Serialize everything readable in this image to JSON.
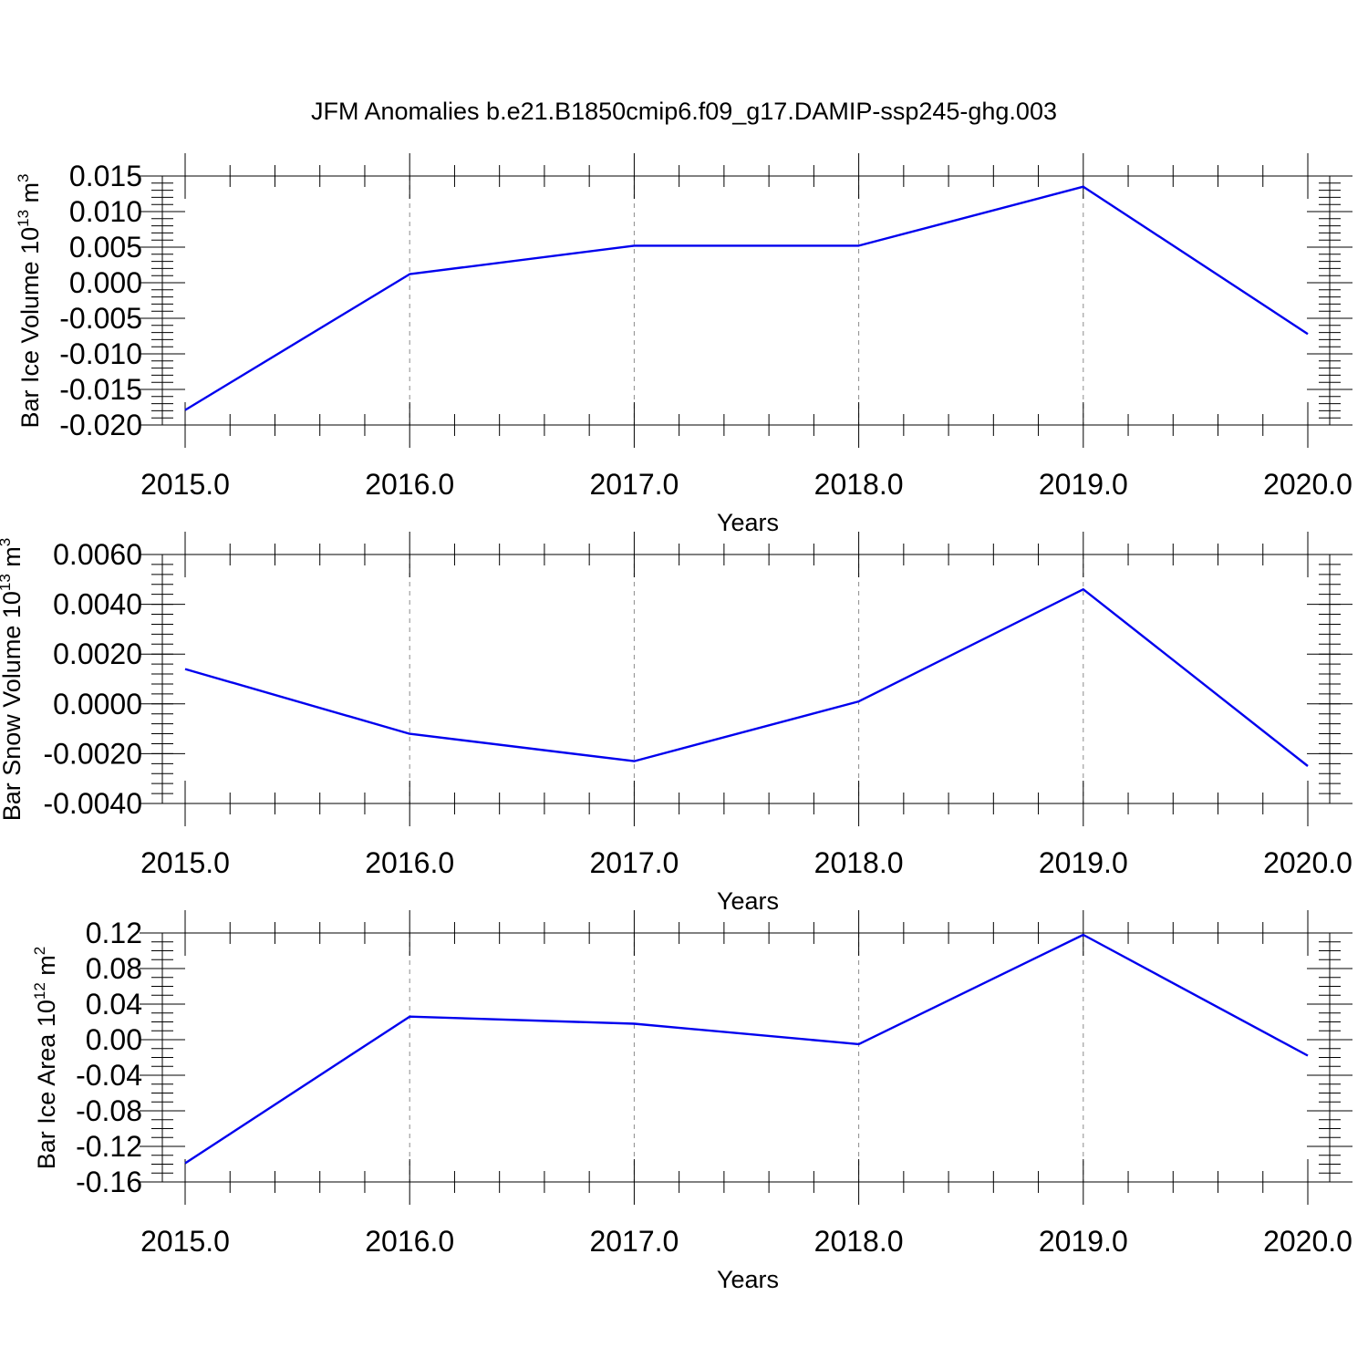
{
  "title": "JFM Anomalies b.e21.B1850cmip6.f09_g17.DAMIP-ssp245-ghg.003",
  "chart_data": [
    {
      "type": "line",
      "x": [
        2015,
        2016,
        2017,
        2018,
        2019,
        2020
      ],
      "values": [
        -0.0179,
        0.0012,
        0.0052,
        0.0052,
        0.0135,
        -0.0072
      ],
      "xlim": [
        2015,
        2020.1
      ],
      "ylim": [
        -0.02,
        0.015
      ],
      "x_ticks": [
        "2015.0",
        "2016.0",
        "2017.0",
        "2018.0",
        "2019.0",
        "2020.0"
      ],
      "y_ticks": [
        {
          "value": 0.015,
          "label": "0.015"
        },
        {
          "value": 0.01,
          "label": "0.010"
        },
        {
          "value": 0.005,
          "label": "0.005"
        },
        {
          "value": 0.0,
          "label": "0.000"
        },
        {
          "value": -0.005,
          "label": "-0.005"
        },
        {
          "value": -0.01,
          "label": "-0.010"
        },
        {
          "value": -0.015,
          "label": "-0.015"
        },
        {
          "value": -0.02,
          "label": "-0.020"
        }
      ],
      "y_minor_step": 0.001,
      "ylabel": "Bar Ice Volume 10",
      "ylabel_exp": "13",
      "ylabel_unit": "m",
      "ylabel_unit_exp": "3",
      "xlabel": "Years",
      "grid": "vertical dashed at major x ticks",
      "color": "#0000ee"
    },
    {
      "type": "line",
      "x": [
        2015,
        2016,
        2017,
        2018,
        2019,
        2020
      ],
      "values": [
        0.0014,
        -0.0012,
        -0.0023,
        0.0001,
        0.0046,
        -0.0025
      ],
      "xlim": [
        2015,
        2020.1
      ],
      "ylim": [
        -0.004,
        0.006
      ],
      "x_ticks": [
        "2015.0",
        "2016.0",
        "2017.0",
        "2018.0",
        "2019.0",
        "2020.0"
      ],
      "y_ticks": [
        {
          "value": 0.006,
          "label": "0.0060"
        },
        {
          "value": 0.004,
          "label": "0.0040"
        },
        {
          "value": 0.002,
          "label": "0.0020"
        },
        {
          "value": 0.0,
          "label": "0.0000"
        },
        {
          "value": -0.002,
          "label": "-0.0020"
        },
        {
          "value": -0.004,
          "label": "-0.0040"
        }
      ],
      "y_minor_step": 0.0004,
      "ylabel": "Bar Snow Volume 10",
      "ylabel_exp": "13",
      "ylabel_unit": "m",
      "ylabel_unit_exp": "3",
      "xlabel": "Years",
      "grid": "vertical dashed at major x ticks",
      "color": "#0000ee"
    },
    {
      "type": "line",
      "x": [
        2015,
        2016,
        2017,
        2018,
        2019,
        2020
      ],
      "values": [
        -0.139,
        0.026,
        0.018,
        -0.005,
        0.118,
        -0.018
      ],
      "xlim": [
        2015,
        2020.1
      ],
      "ylim": [
        -0.16,
        0.12
      ],
      "x_ticks": [
        "2015.0",
        "2016.0",
        "2017.0",
        "2018.0",
        "2019.0",
        "2020.0"
      ],
      "y_ticks": [
        {
          "value": 0.12,
          "label": "0.12"
        },
        {
          "value": 0.08,
          "label": "0.08"
        },
        {
          "value": 0.04,
          "label": "0.04"
        },
        {
          "value": 0.0,
          "label": "0.00"
        },
        {
          "value": -0.04,
          "label": "-0.04"
        },
        {
          "value": -0.08,
          "label": "-0.08"
        },
        {
          "value": -0.12,
          "label": "-0.12"
        },
        {
          "value": -0.16,
          "label": "-0.16"
        }
      ],
      "y_minor_step": 0.01,
      "ylabel": "Bar Ice Area 10",
      "ylabel_exp": "12",
      "ylabel_unit": "m",
      "ylabel_unit_exp": "2",
      "xlabel": "Years",
      "grid": "vertical dashed at major x ticks",
      "color": "#0000ee"
    }
  ]
}
